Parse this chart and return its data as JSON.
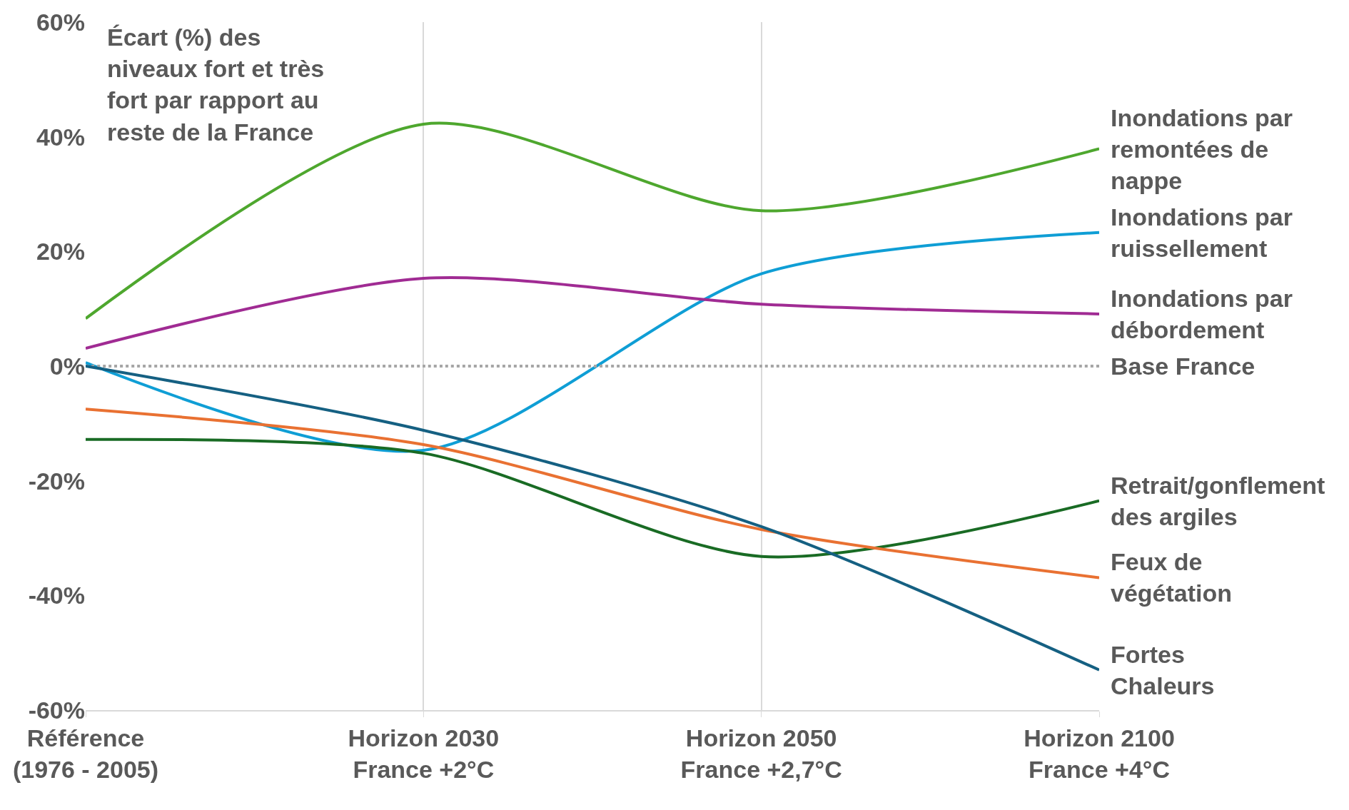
{
  "chart_data": {
    "type": "line",
    "title": "Écart (%) des\nniveaux fort et très\nfort par rapport au\nreste de la France",
    "categories": [
      "Référence\n(1976 - 2005)",
      "Horizon 2030\nFrance +2°C",
      "Horizon 2050\nFrance +2,7°C",
      "Horizon 2100\nFrance +4°C"
    ],
    "series": [
      {
        "name": "Inondations par\nremontées de\nnappe",
        "color": "#4ea72e",
        "values": [
          8.3,
          42.2,
          27.1,
          37.9
        ]
      },
      {
        "name": "Inondations par\nruissellement",
        "color": "#0f9ed5",
        "values": [
          0.6,
          -14.7,
          16.1,
          23.3
        ]
      },
      {
        "name": "Inondations par\ndébordement",
        "color": "#a02b93",
        "values": [
          3.1,
          15.3,
          10.8,
          9.1
        ]
      },
      {
        "name": "Base France",
        "color": "#a6a6a6",
        "values": [
          0,
          0,
          0,
          0
        ],
        "line_style": "dotted"
      },
      {
        "name": "Retrait/gonflement\ndes argiles",
        "color": "#196b24",
        "values": [
          -12.8,
          -15.2,
          -33.2,
          -23.5
        ]
      },
      {
        "name": "Feux de\nvégétation",
        "color": "#e97132",
        "values": [
          -7.5,
          -13.7,
          -28.5,
          -36.9
        ]
      },
      {
        "name": "Fortes\nChaleurs",
        "color": "#156082",
        "values": [
          0,
          -11.2,
          -28,
          -53
        ]
      }
    ],
    "ylim": [
      -60,
      60
    ],
    "yticks": [
      {
        "value": -60,
        "label": "-60%"
      },
      {
        "value": -40,
        "label": "-40%"
      },
      {
        "value": -20,
        "label": "-20%"
      },
      {
        "value": 0,
        "label": "0%"
      },
      {
        "value": 20,
        "label": "20%"
      },
      {
        "value": 40,
        "label": "40%"
      },
      {
        "value": 60,
        "label": "60%"
      }
    ],
    "grid": "x",
    "legend": false,
    "line_style": "solid",
    "marker": "none"
  }
}
